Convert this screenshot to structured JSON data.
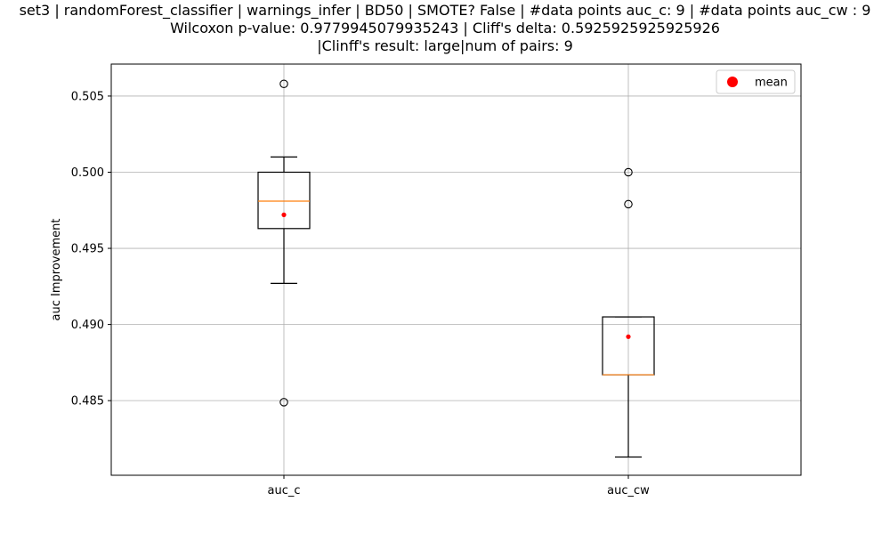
{
  "chart_data": {
    "type": "box",
    "title_lines": [
      "set3 | randomForest_classifier | warnings_infer | BD50 | SMOTE? False | #data points auc_c: 9 | #data points auc_cw : 9",
      "Wilcoxon p-value: 0.9779945079935243 | Cliff's delta: 0.5925925925925926",
      "|Clinff's result: large|num of pairs: 9"
    ],
    "xlabel": "",
    "ylabel": "auc Improvement",
    "ylim": [
      0.4801,
      0.5071
    ],
    "yticks": [
      0.485,
      0.49,
      0.495,
      0.5,
      0.505
    ],
    "ytick_labels": [
      "0.485",
      "0.490",
      "0.495",
      "0.500",
      "0.505"
    ],
    "categories": [
      "auc_c",
      "auc_cw"
    ],
    "boxes": [
      {
        "label": "auc_c",
        "whisker_low": 0.4927,
        "q1": 0.4963,
        "median": 0.4981,
        "q3": 0.5,
        "whisker_high": 0.501,
        "mean": 0.4972,
        "outliers": [
          0.5058,
          0.4849
        ]
      },
      {
        "label": "auc_cw",
        "whisker_low": 0.4813,
        "q1": 0.4867,
        "median": 0.4867,
        "q3": 0.4905,
        "whisker_high": 0.4905,
        "mean": 0.4892,
        "outliers": [
          0.5,
          0.4979
        ]
      }
    ],
    "legend": {
      "label": "mean",
      "position": "upper right"
    },
    "grid": true,
    "colors": {
      "box": "#000000",
      "median": "#ff7f0e",
      "mean": "#ff0000",
      "grid": "#b0b0b0"
    }
  }
}
